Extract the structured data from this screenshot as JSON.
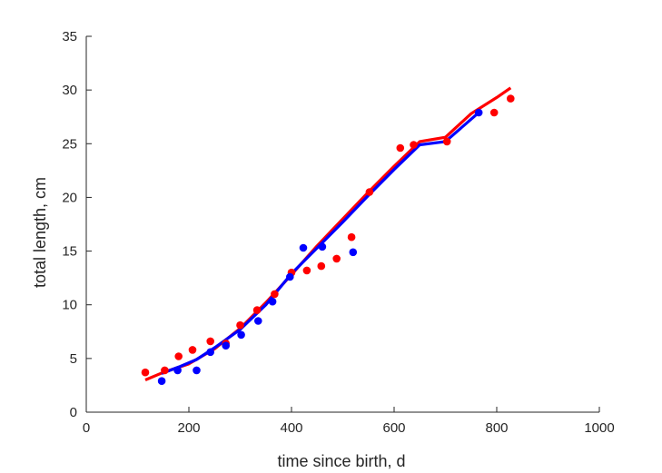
{
  "chart_data": {
    "type": "scatter",
    "title": "",
    "xlabel": "time since birth, d",
    "ylabel": "total length, cm",
    "xlim": [
      0,
      1000
    ],
    "ylim": [
      0,
      35
    ],
    "xticks": [
      0,
      200,
      400,
      600,
      800,
      1000
    ],
    "yticks": [
      0,
      5,
      10,
      15,
      20,
      25,
      30,
      35
    ],
    "grid": false,
    "legend": "none",
    "series": [
      {
        "kind": "points",
        "color": "#ff0000",
        "points": [
          [
            115,
            3.7
          ],
          [
            153,
            3.9
          ],
          [
            180,
            5.2
          ],
          [
            207,
            5.8
          ],
          [
            242,
            6.6
          ],
          [
            272,
            6.4
          ],
          [
            300,
            8.1
          ],
          [
            333,
            9.5
          ],
          [
            367,
            11.0
          ],
          [
            400,
            13.0
          ],
          [
            430,
            13.2
          ],
          [
            458,
            13.6
          ],
          [
            488,
            14.3
          ],
          [
            517,
            16.3
          ],
          [
            552,
            20.5
          ],
          [
            612,
            24.6
          ],
          [
            638,
            24.9
          ],
          [
            703,
            25.2
          ],
          [
            795,
            27.9
          ],
          [
            827,
            29.2
          ]
        ]
      },
      {
        "kind": "points",
        "color": "#0000ff",
        "points": [
          [
            147,
            2.9
          ],
          [
            178,
            3.9
          ],
          [
            215,
            3.9
          ],
          [
            242,
            5.6
          ],
          [
            272,
            6.2
          ],
          [
            302,
            7.2
          ],
          [
            335,
            8.5
          ],
          [
            363,
            10.3
          ],
          [
            397,
            12.6
          ],
          [
            423,
            15.3
          ],
          [
            460,
            15.4
          ],
          [
            520,
            14.9
          ],
          [
            765,
            27.9
          ]
        ]
      },
      {
        "kind": "line",
        "color": "#ff0000",
        "points": [
          [
            115,
            3.0
          ],
          [
            150,
            3.7
          ],
          [
            200,
            4.5
          ],
          [
            250,
            5.9
          ],
          [
            300,
            7.8
          ],
          [
            350,
            10.2
          ],
          [
            400,
            12.8
          ],
          [
            450,
            15.5
          ],
          [
            500,
            18.0
          ],
          [
            550,
            20.5
          ],
          [
            600,
            22.9
          ],
          [
            650,
            25.2
          ],
          [
            700,
            25.6
          ],
          [
            750,
            27.8
          ],
          [
            800,
            29.3
          ],
          [
            827,
            30.2
          ]
        ]
      },
      {
        "kind": "line",
        "color": "#0000ff",
        "points": [
          [
            147,
            3.6
          ],
          [
            180,
            4.2
          ],
          [
            215,
            4.9
          ],
          [
            250,
            6.0
          ],
          [
            300,
            7.7
          ],
          [
            350,
            10.0
          ],
          [
            400,
            12.9
          ],
          [
            450,
            15.3
          ],
          [
            500,
            17.7
          ],
          [
            550,
            20.2
          ],
          [
            600,
            22.6
          ],
          [
            650,
            24.9
          ],
          [
            700,
            25.2
          ],
          [
            765,
            27.9
          ]
        ]
      }
    ]
  }
}
